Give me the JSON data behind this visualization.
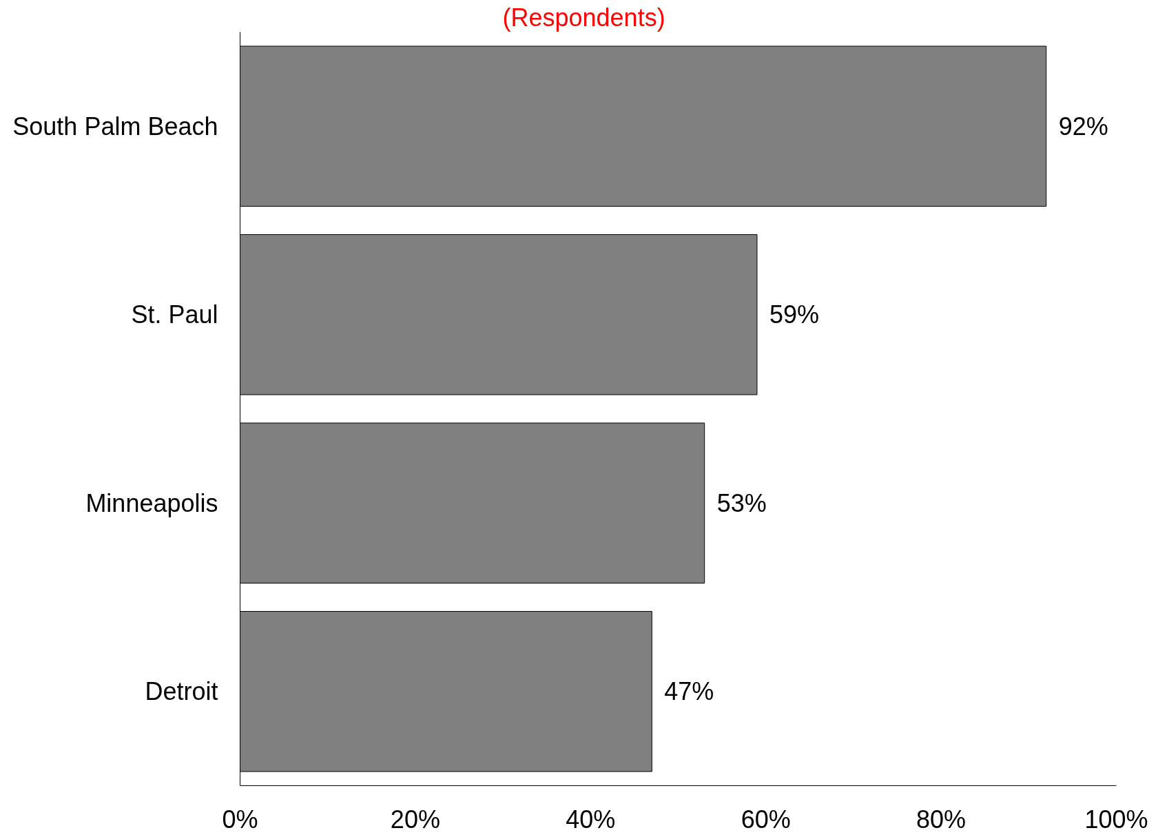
{
  "chart_data": {
    "type": "bar",
    "orientation": "horizontal",
    "title": "(Respondents)",
    "categories": [
      "South Palm Beach",
      "St. Paul",
      "Minneapolis",
      "Detroit"
    ],
    "values": [
      92,
      59,
      53,
      47
    ],
    "color": "#808080",
    "value_labels": [
      "92%",
      "59%",
      "53%",
      "47%"
    ],
    "xlim": [
      0,
      100
    ],
    "xticks": [
      {
        "value": 0,
        "label": "0%"
      },
      {
        "value": 20,
        "label": "20%"
      },
      {
        "value": 40,
        "label": "40%"
      },
      {
        "value": 60,
        "label": "60%"
      },
      {
        "value": 80,
        "label": "80%"
      },
      {
        "value": 100,
        "label": "100%"
      }
    ]
  }
}
